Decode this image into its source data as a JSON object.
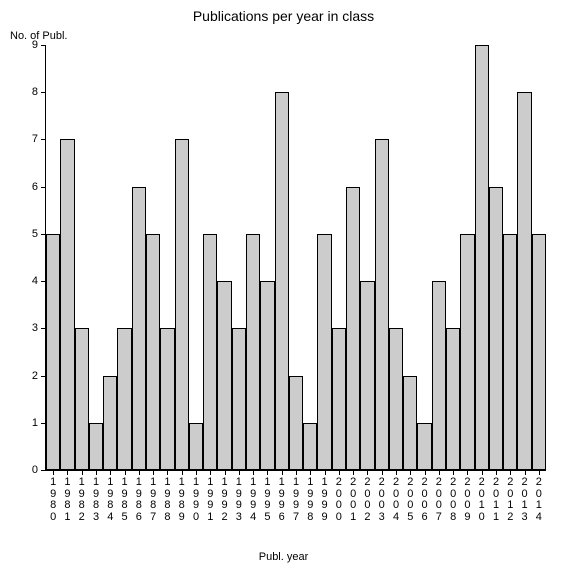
{
  "chart": {
    "type": "bar",
    "title": "Publications per year in class",
    "title_fontsize": 14,
    "y_axis_title": "No. of Publ.",
    "x_axis_title": "Publ. year",
    "axis_label_fontsize": 11,
    "tick_label_fontsize": 11,
    "background_color": "#ffffff",
    "bar_fill_color": "#cccccc",
    "bar_border_color": "#000000",
    "axis_color": "#000000",
    "text_color": "#000000",
    "ylim": [
      0,
      9
    ],
    "ytick_step": 1,
    "bar_width_ratio": 1.0,
    "categories": [
      "1980",
      "1981",
      "1982",
      "1983",
      "1984",
      "1985",
      "1986",
      "1987",
      "1988",
      "1989",
      "1990",
      "1991",
      "1992",
      "1993",
      "1994",
      "1995",
      "1996",
      "1997",
      "1998",
      "1999",
      "2000",
      "2001",
      "2002",
      "2003",
      "2004",
      "2005",
      "2006",
      "2007",
      "2008",
      "2009",
      "2010",
      "2011",
      "2012",
      "2013",
      "2014"
    ],
    "values": [
      5,
      7,
      3,
      1,
      2,
      3,
      6,
      5,
      3,
      7,
      1,
      5,
      4,
      3,
      5,
      4,
      8,
      2,
      1,
      5,
      3,
      6,
      4,
      7,
      3,
      2,
      1,
      4,
      3,
      5,
      9,
      6,
      5,
      8,
      5
    ]
  }
}
